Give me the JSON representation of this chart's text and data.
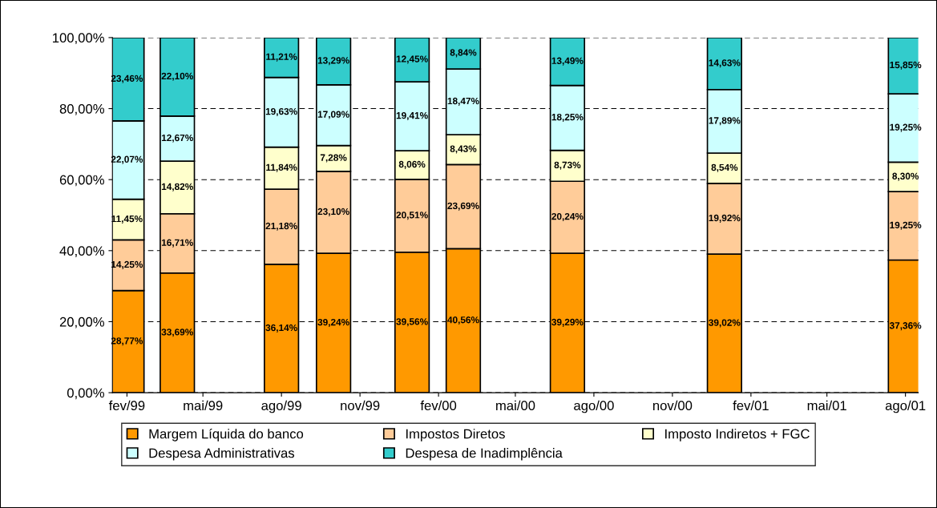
{
  "chart_data": {
    "type": "bar",
    "stacked": true,
    "x": [
      "1999-02",
      "1999-04",
      "1999-08",
      "1999-10",
      "2000-01",
      "2000-03",
      "2000-07",
      "2001-01",
      "2001-08"
    ],
    "xlim": [
      "1999-01-15",
      "2001-08-16"
    ],
    "xticks": [
      {
        "value": "1999-02",
        "label": "fev/99"
      },
      {
        "value": "1999-05",
        "label": "mai/99"
      },
      {
        "value": "1999-08",
        "label": "ago/99"
      },
      {
        "value": "1999-11",
        "label": "nov/99"
      },
      {
        "value": "2000-02",
        "label": "fev/00"
      },
      {
        "value": "2000-05",
        "label": "mai/00"
      },
      {
        "value": "2000-08",
        "label": "ago/00"
      },
      {
        "value": "2000-11",
        "label": "nov/00"
      },
      {
        "value": "2001-02",
        "label": "fev/01"
      },
      {
        "value": "2001-05",
        "label": "mai/01"
      },
      {
        "value": "2001-08",
        "label": "ago/01"
      }
    ],
    "ylim": [
      0,
      100
    ],
    "yticks": [
      {
        "value": 0,
        "label": "0,00%"
      },
      {
        "value": 20,
        "label": "20,00%"
      },
      {
        "value": 40,
        "label": "40,00%"
      },
      {
        "value": 60,
        "label": "60,00%"
      },
      {
        "value": 80,
        "label": "80,00%"
      },
      {
        "value": 100,
        "label": "100,00%"
      }
    ],
    "grid": "y",
    "legend": "bottom",
    "series": [
      {
        "name": "Margem Líquida do banco",
        "color": "#ff9900",
        "values": [
          28.77,
          33.69,
          36.14,
          39.24,
          39.56,
          40.56,
          39.29,
          39.02,
          37.36
        ],
        "value_labels": [
          "28,77%",
          "33,69%",
          "36,14%",
          "39,24%",
          "39,56%",
          "40,56%",
          "39,29%",
          "39,02%",
          "37,36%"
        ]
      },
      {
        "name": "Impostos Diretos",
        "color": "#ffcc99",
        "values": [
          14.25,
          16.71,
          21.18,
          23.1,
          20.51,
          23.69,
          20.24,
          19.92,
          19.25
        ],
        "value_labels": [
          "14,25%",
          "16,71%",
          "21,18%",
          "23,10%",
          "20,51%",
          "23,69%",
          "20,24%",
          "19,92%",
          "19,25%"
        ]
      },
      {
        "name": "Imposto Indiretos + FGC",
        "color": "#ffffcc",
        "values": [
          11.45,
          14.82,
          11.84,
          7.28,
          8.06,
          8.43,
          8.73,
          8.54,
          8.3
        ],
        "value_labels": [
          "11,45%",
          "14,82%",
          "11,84%",
          "7,28%",
          "8,06%",
          "8,43%",
          "8,73%",
          "8,54%",
          "8,30%"
        ]
      },
      {
        "name": "Despesa Administrativas",
        "color": "#ccffff",
        "values": [
          22.07,
          12.67,
          19.63,
          17.09,
          19.41,
          18.47,
          18.25,
          17.89,
          19.25
        ],
        "value_labels": [
          "22,07%",
          "12,67%",
          "19,63%",
          "17,09%",
          "19,41%",
          "18,47%",
          "18,25%",
          "17,89%",
          "19,25%"
        ]
      },
      {
        "name": "Despesa de Inadimplência",
        "color": "#33cccc",
        "values": [
          23.46,
          22.1,
          11.21,
          13.29,
          12.45,
          8.84,
          13.49,
          14.63,
          15.85
        ],
        "value_labels": [
          "23,46%",
          "22,10%",
          "11,21%",
          "13,29%",
          "12,45%",
          "8,84%",
          "13,49%",
          "14,63%",
          "15,85%"
        ]
      }
    ]
  }
}
